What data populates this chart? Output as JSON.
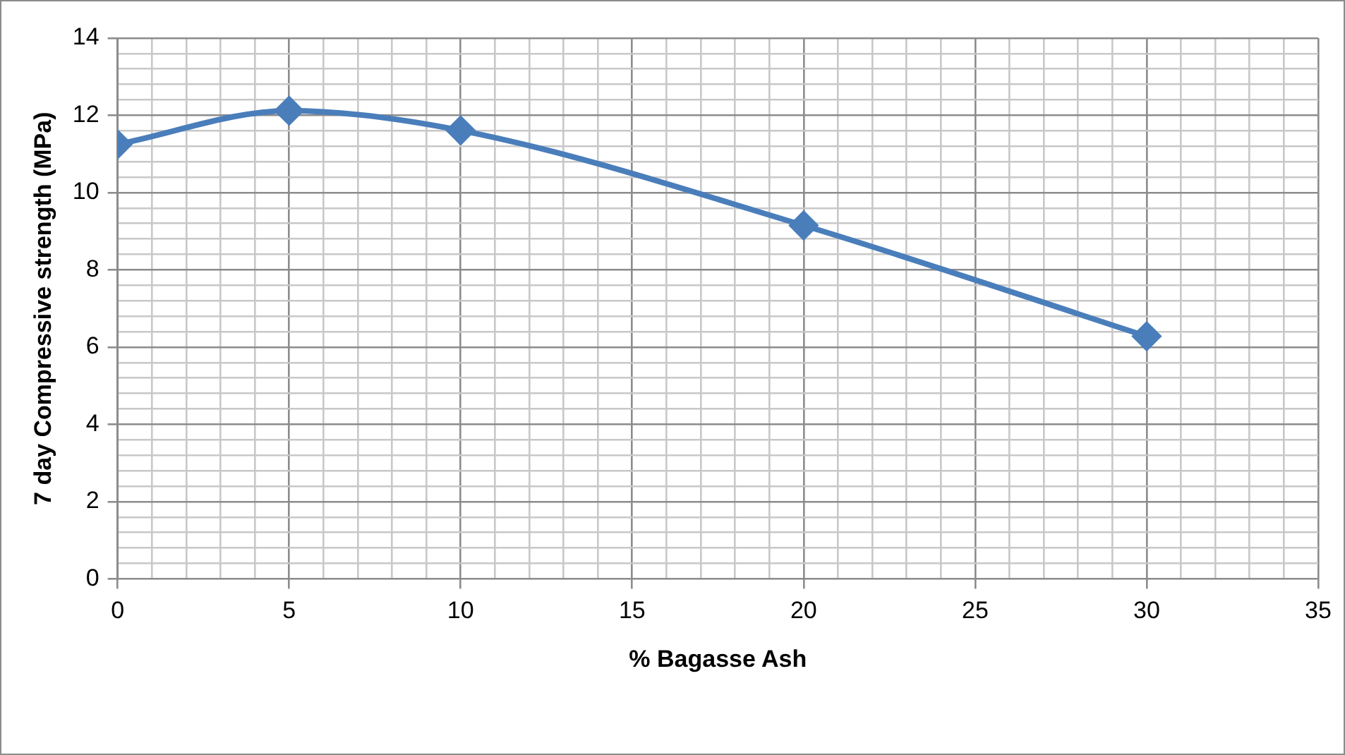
{
  "chart_data": {
    "type": "line",
    "xlabel": "% Bagasse Ash",
    "ylabel": "7 day Compressive strength (MPa)",
    "x": [
      0,
      5,
      10,
      20,
      30
    ],
    "series": [
      {
        "color": "#4a7ebb",
        "values": [
          11.25,
          12.12,
          11.61,
          9.15,
          6.28
        ]
      }
    ],
    "xlim": [
      0,
      35
    ],
    "xticks": [
      0,
      {
        "value": 1,
        "label": null
      },
      {
        "value": 2,
        "label": null
      },
      {
        "value": 3,
        "label": null
      },
      {
        "value": 4,
        "label": null
      },
      5,
      {
        "value": 6,
        "label": null
      },
      {
        "value": 7,
        "label": null
      },
      {
        "value": 8,
        "label": null
      },
      {
        "value": 9,
        "label": null
      },
      10,
      {
        "value": 11,
        "label": null
      },
      {
        "value": 12,
        "label": null
      },
      {
        "value": 13,
        "label": null
      },
      {
        "value": 14,
        "label": null
      },
      15,
      {
        "value": 16,
        "label": null
      },
      {
        "value": 17,
        "label": null
      },
      {
        "value": 18,
        "label": null
      },
      {
        "value": 19,
        "label": null
      },
      20,
      {
        "value": 21,
        "label": null
      },
      {
        "value": 22,
        "label": null
      },
      {
        "value": 23,
        "label": null
      },
      {
        "value": 24,
        "label": null
      },
      25,
      {
        "value": 26,
        "label": null
      },
      {
        "value": 27,
        "label": null
      },
      {
        "value": 28,
        "label": null
      },
      {
        "value": 29,
        "label": null
      },
      30,
      {
        "value": 31,
        "label": null
      },
      {
        "value": 32,
        "label": null
      },
      {
        "value": 33,
        "label": null
      },
      {
        "value": 34,
        "label": null
      },
      35
    ],
    "ylim": [
      0,
      14
    ],
    "yticks": [
      0,
      {
        "value": 0.4,
        "label": null
      },
      {
        "value": 0.8,
        "label": null
      },
      {
        "value": 1.2,
        "label": null
      },
      {
        "value": 1.6,
        "label": null
      },
      2,
      {
        "value": 2.4,
        "label": null
      },
      {
        "value": 2.8,
        "label": null
      },
      {
        "value": 3.2,
        "label": null
      },
      {
        "value": 3.6,
        "label": null
      },
      4,
      {
        "value": 4.4,
        "label": null
      },
      {
        "value": 4.8,
        "label": null
      },
      {
        "value": 5.2,
        "label": null
      },
      {
        "value": 5.6,
        "label": null
      },
      6,
      {
        "value": 6.4,
        "label": null
      },
      {
        "value": 6.8,
        "label": null
      },
      {
        "value": 7.2,
        "label": null
      },
      {
        "value": 7.6,
        "label": null
      },
      8,
      {
        "value": 8.4,
        "label": null
      },
      {
        "value": 8.8,
        "label": null
      },
      {
        "value": 9.2,
        "label": null
      },
      {
        "value": 9.6,
        "label": null
      },
      10,
      {
        "value": 10.4,
        "label": null
      },
      {
        "value": 10.8,
        "label": null
      },
      {
        "value": 11.2,
        "label": null
      },
      {
        "value": 11.6,
        "label": null
      },
      12,
      {
        "value": 12.4,
        "label": null
      },
      {
        "value": 12.8,
        "label": null
      },
      {
        "value": 13.2,
        "label": null
      },
      {
        "value": 13.6,
        "label": null
      },
      14
    ],
    "grid": true,
    "marker": "diamond",
    "line_style": "solid",
    "legend": false
  }
}
